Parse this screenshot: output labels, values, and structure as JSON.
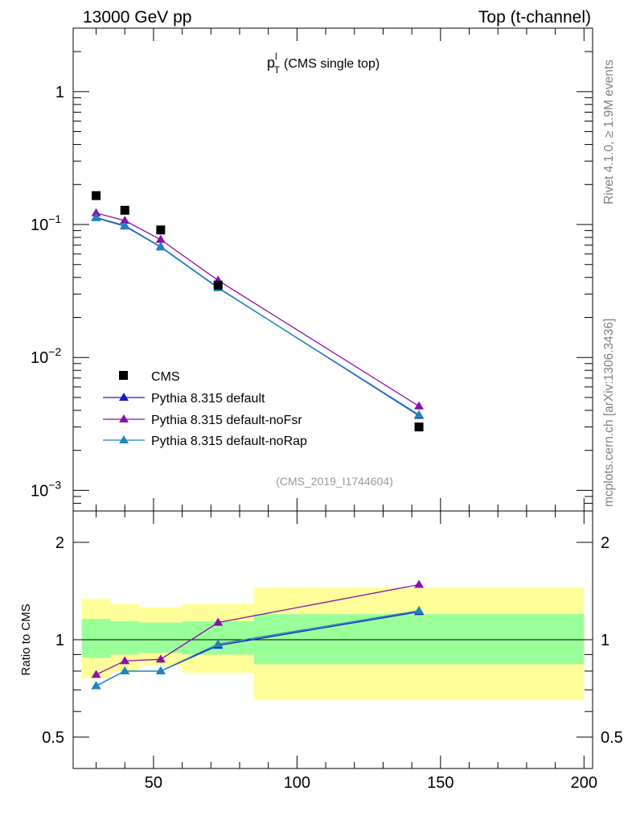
{
  "header": {
    "left_label": "13000 GeV pp",
    "right_label": "Top (t-channel)"
  },
  "side_labels": {
    "rivet": "Rivet 4.1.0, ≥ 1.9M events",
    "site": "mcplots.cern.ch [arXiv:1306.3436]"
  },
  "chart_data": [
    {
      "type": "line",
      "panel": "main",
      "title_base": "p",
      "title_sup": "l",
      "title_sub": "T",
      "title_rest": "(CMS single top)",
      "watermark": "(CMS_2019_I1744604)",
      "yscale": "log",
      "xlim": [
        22,
        203
      ],
      "ylim": [
        0.0007,
        3.0
      ],
      "y_ticks": [
        {
          "value": 1,
          "label": "1",
          "exp": ""
        },
        {
          "value": 0.1,
          "label": "10",
          "exp": "−1"
        },
        {
          "value": 0.01,
          "label": "10",
          "exp": "−2"
        },
        {
          "value": 0.001,
          "label": "10",
          "exp": "−3"
        }
      ],
      "data": {
        "name": "CMS",
        "x": [
          30,
          40,
          52.5,
          72.5,
          142.5
        ],
        "y": [
          0.165,
          0.128,
          0.091,
          0.035,
          0.003
        ]
      },
      "series": [
        {
          "name": "Pythia 8.315 default",
          "color": "#1a1acc",
          "x": [
            30,
            40,
            52.5,
            72.5,
            142.5
          ],
          "y": [
            0.113,
            0.098,
            0.068,
            0.0335,
            0.00365
          ]
        },
        {
          "name": "Pythia 8.315 default-noFsr",
          "color": "#8811aa",
          "x": [
            30,
            40,
            52.5,
            72.5,
            142.5
          ],
          "y": [
            0.122,
            0.107,
            0.077,
            0.038,
            0.0043
          ]
        },
        {
          "name": "Pythia 8.315 default-noRap",
          "color": "#1a88bb",
          "x": [
            30,
            40,
            52.5,
            72.5,
            142.5
          ],
          "y": [
            0.112,
            0.097,
            0.0675,
            0.0333,
            0.0037
          ]
        }
      ]
    },
    {
      "type": "line",
      "panel": "ratio",
      "ylabel": "Ratio to CMS",
      "yscale": "log",
      "xlim": [
        22,
        203
      ],
      "ylim": [
        0.4,
        2.5
      ],
      "y_ticks": [
        {
          "value": 2,
          "label": "2"
        },
        {
          "value": 1,
          "label": "1"
        },
        {
          "value": 0.5,
          "label": "0.5"
        }
      ],
      "x_ticks": [
        {
          "value": 50,
          "label": "50"
        },
        {
          "value": 100,
          "label": "100"
        },
        {
          "value": 150,
          "label": "150"
        },
        {
          "value": 200,
          "label": "200"
        }
      ],
      "bands": [
        {
          "xlo": 25,
          "xhi": 35,
          "y1lo": 0.88,
          "y1hi": 1.16,
          "y2lo": 0.76,
          "y2hi": 1.34
        },
        {
          "xlo": 35,
          "xhi": 45,
          "y1lo": 0.9,
          "y1hi": 1.14,
          "y2lo": 0.8,
          "y2hi": 1.29
        },
        {
          "xlo": 45,
          "xhi": 60,
          "y1lo": 0.91,
          "y1hi": 1.13,
          "y2lo": 0.83,
          "y2hi": 1.26
        },
        {
          "xlo": 60,
          "xhi": 85,
          "y1lo": 0.9,
          "y1hi": 1.14,
          "y2lo": 0.79,
          "y2hi": 1.29
        },
        {
          "xlo": 85,
          "xhi": 200,
          "y1lo": 0.84,
          "y1hi": 1.2,
          "y2lo": 0.65,
          "y2hi": 1.45
        }
      ],
      "series": [
        {
          "name": "Pythia 8.315 default",
          "color": "#1a1acc",
          "x": [
            30,
            40,
            52.5,
            72.5,
            142.5
          ],
          "y": [
            0.72,
            0.8,
            0.8,
            0.96,
            1.22
          ]
        },
        {
          "name": "Pythia 8.315 default-noFsr",
          "color": "#8811aa",
          "x": [
            30,
            40,
            52.5,
            72.5,
            142.5
          ],
          "y": [
            0.78,
            0.86,
            0.87,
            1.13,
            1.48
          ]
        },
        {
          "name": "Pythia 8.315 default-noRap",
          "color": "#1a88bb",
          "x": [
            30,
            40,
            52.5,
            72.5,
            142.5
          ],
          "y": [
            0.72,
            0.8,
            0.8,
            0.97,
            1.23
          ]
        }
      ]
    }
  ],
  "colors": {
    "band_inner": "#99ff99",
    "band_outer": "#ffff99",
    "data_marker": "#000000",
    "watermark": "#999999",
    "side_text": "#808080"
  }
}
